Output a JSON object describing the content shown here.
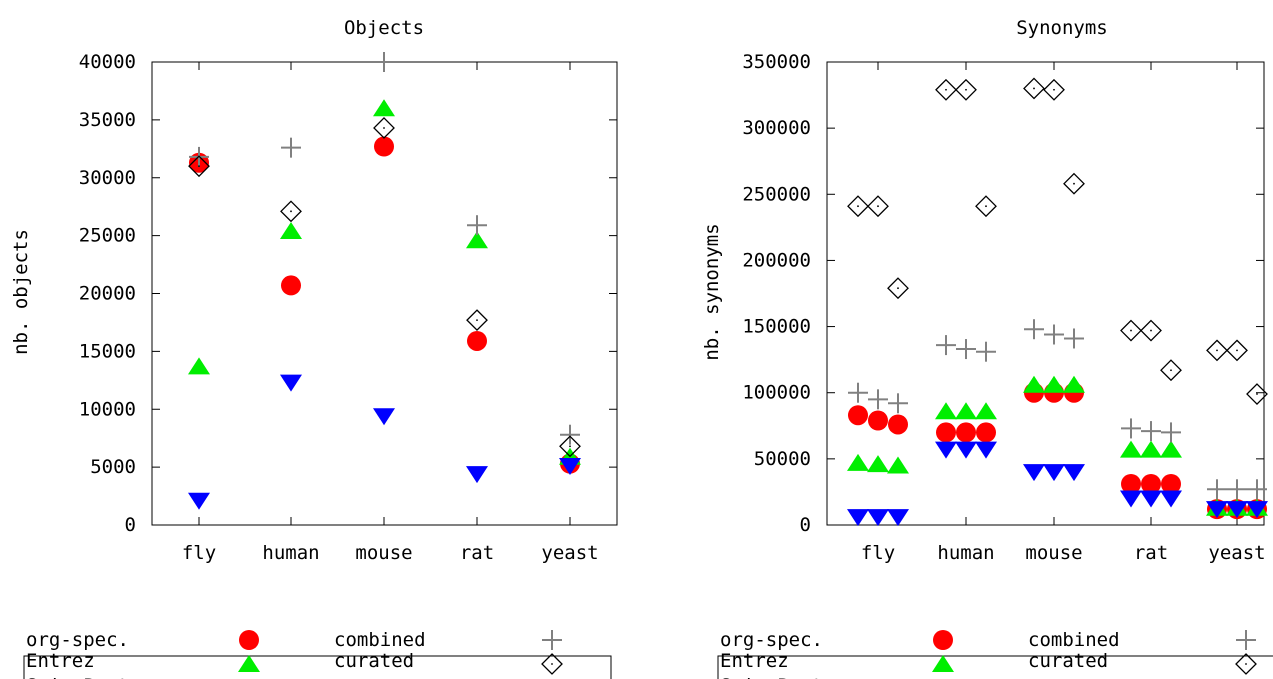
{
  "colors": {
    "org_spec": "#ff0000",
    "entrez": "#00ee00",
    "swissprot": "#0000ff",
    "combined": "#808080",
    "curated": "#000000"
  },
  "legend": {
    "items": [
      {
        "key": "org_spec",
        "label": "org-spec.",
        "marker": "circle"
      },
      {
        "key": "entrez",
        "label": "Entrez",
        "marker": "triangle-up"
      },
      {
        "key": "swissprot",
        "label": "SwissProt",
        "marker": "triangle-down"
      },
      {
        "key": "combined",
        "label": "combined",
        "marker": "plus"
      },
      {
        "key": "curated",
        "label": "curated",
        "marker": "diamond"
      }
    ]
  },
  "chart_data": [
    {
      "type": "scatter",
      "title": "Objects",
      "ylabel": "nb. objects",
      "xlabel": "",
      "categories": [
        "fly",
        "human",
        "mouse",
        "rat",
        "yeast"
      ],
      "ylim": [
        0,
        40000
      ],
      "yticks": [
        "0",
        "5000",
        "10000",
        "15000",
        "20000",
        "25000",
        "30000",
        "35000",
        "40000"
      ],
      "series": [
        {
          "name": "org-spec.",
          "key": "org_spec",
          "values": [
            [
              31300
            ],
            [
              20700
            ],
            [
              32700
            ],
            [
              15900
            ],
            [
              5300
            ]
          ]
        },
        {
          "name": "Entrez",
          "key": "entrez",
          "values": [
            [
              13700
            ],
            [
              25400
            ],
            [
              36000
            ],
            [
              24600
            ],
            [
              5900
            ]
          ]
        },
        {
          "name": "SwissProt",
          "key": "swissprot",
          "values": [
            [
              2100
            ],
            [
              12300
            ],
            [
              9400
            ],
            [
              4400
            ],
            [
              5100
            ]
          ]
        },
        {
          "name": "combined",
          "key": "combined",
          "values": [
            [
              31800
            ],
            [
              32600
            ],
            [
              40000
            ],
            [
              25900
            ],
            [
              7800
            ]
          ]
        },
        {
          "name": "curated",
          "key": "curated",
          "values": [
            [
              31000
            ],
            [
              27100
            ],
            [
              34300
            ],
            [
              17700
            ],
            [
              6800
            ]
          ]
        }
      ]
    },
    {
      "type": "scatter",
      "title": "Synonyms",
      "ylabel": "nb. synonyms",
      "xlabel": "",
      "categories": [
        "fly",
        "human",
        "mouse",
        "rat",
        "yeast"
      ],
      "ylim": [
        0,
        350000
      ],
      "yticks": [
        "0",
        "50000",
        "100000",
        "150000",
        "200000",
        "250000",
        "300000",
        "350000"
      ],
      "series": [
        {
          "name": "org-spec.",
          "key": "org_spec",
          "values": [
            [
              83000,
              79000,
              76000
            ],
            [
              70000,
              70000,
              70000
            ],
            [
              100000,
              100000,
              100000
            ],
            [
              31000,
              31000,
              31000
            ],
            [
              12000,
              12000,
              12000
            ]
          ]
        },
        {
          "name": "Entrez",
          "key": "entrez",
          "values": [
            [
              47000,
              46000,
              45000
            ],
            [
              86000,
              86000,
              86000
            ],
            [
              106000,
              106000,
              106000
            ],
            [
              57000,
              57000,
              57000
            ],
            [
              13000,
              13000,
              13000
            ]
          ]
        },
        {
          "name": "SwissProt",
          "key": "swissprot",
          "values": [
            [
              6000,
              6000,
              6000
            ],
            [
              57000,
              57000,
              57000
            ],
            [
              40000,
              40000,
              40000
            ],
            [
              20000,
              20000,
              20000
            ],
            [
              12000,
              12000,
              12000
            ]
          ]
        },
        {
          "name": "combined",
          "key": "combined",
          "values": [
            [
              100000,
              95000,
              92000
            ],
            [
              136000,
              133000,
              131000
            ],
            [
              148000,
              144000,
              141000
            ],
            [
              73000,
              71000,
              70000
            ],
            [
              27000,
              27000,
              27000
            ]
          ]
        },
        {
          "name": "curated",
          "key": "curated",
          "values": [
            [
              241000,
              241000,
              179000
            ],
            [
              329000,
              329000,
              241000
            ],
            [
              330000,
              329000,
              258000
            ],
            [
              147000,
              147000,
              117000
            ],
            [
              132000,
              132000,
              99000
            ]
          ]
        }
      ]
    }
  ]
}
